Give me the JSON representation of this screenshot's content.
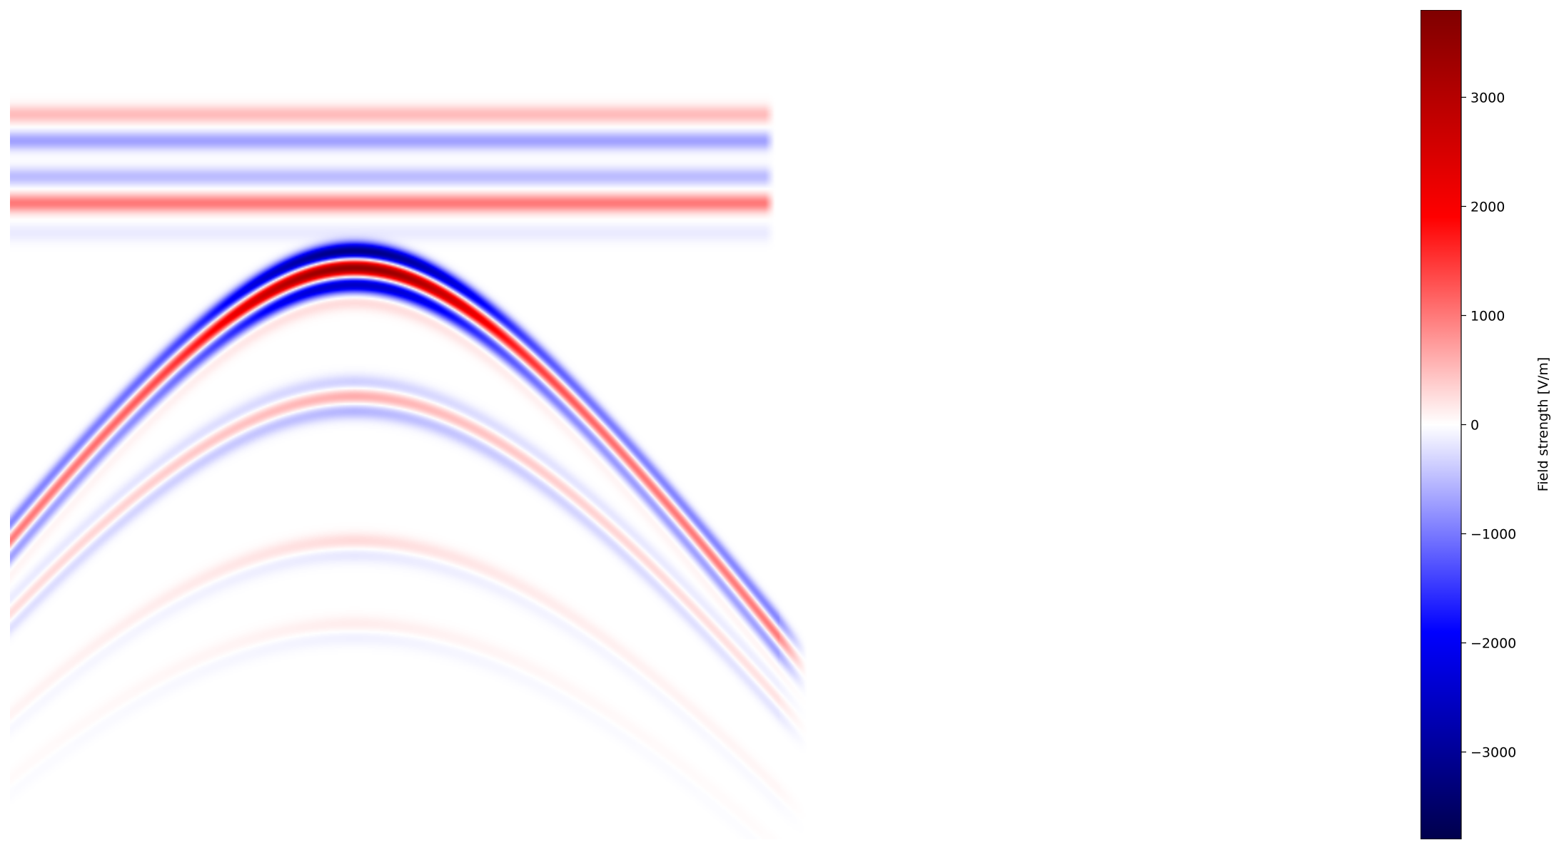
{
  "chart_data": {
    "type": "heatmap",
    "title": "",
    "xlabel": "",
    "ylabel": "",
    "axes_visible": false,
    "colormap": "seismic",
    "colormap_stops": [
      "#00004c",
      "#0000ff",
      "#ffffff",
      "#ff0000",
      "#7f0000"
    ],
    "colorbar": {
      "label": "Field strength [V/m]",
      "vmin": -3800,
      "vmax": 3800,
      "ticks": [
        3000,
        2000,
        1000,
        0,
        -1000,
        -2000,
        -3000
      ],
      "tick_labels": [
        "3000",
        "2000",
        "1000",
        "0",
        "−1000",
        "−2000",
        "−3000"
      ],
      "location": "right"
    },
    "features": {
      "direct_wave_bands": [
        {
          "relative_depth": 0.125,
          "value": 500
        },
        {
          "relative_depth": 0.157,
          "value": -700
        },
        {
          "relative_depth": 0.2,
          "value": -500
        },
        {
          "relative_depth": 0.232,
          "value": 1000
        },
        {
          "relative_depth": 0.268,
          "value": -150
        }
      ],
      "primary_hyperbola": {
        "apex_x_fraction": 0.36,
        "apex_depth_fraction": 0.32,
        "peak_value": 3700,
        "min_value": -3300
      }
    }
  }
}
